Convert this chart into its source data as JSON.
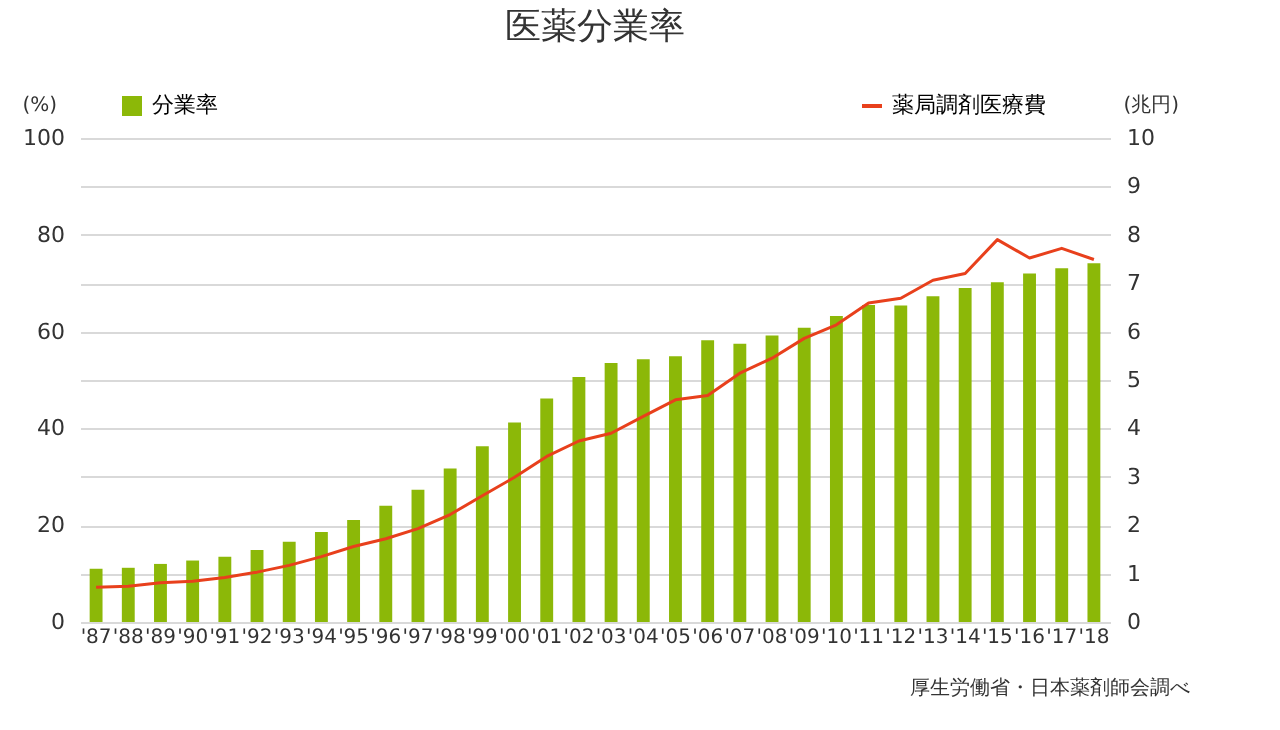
{
  "chart_data": {
    "type": "bar",
    "title": "医薬分業率",
    "ylabel": "(%)",
    "y2label": "(兆円)",
    "categories": [
      "'87",
      "'88",
      "'89",
      "'90",
      "'91",
      "'92",
      "'93",
      "'94",
      "'95",
      "'96",
      "'97",
      "'98",
      "'99",
      "'00",
      "'01",
      "'02",
      "'03",
      "'04",
      "'05",
      "'06",
      "'07",
      "'08",
      "'09",
      "'10",
      "'11",
      "'12",
      "'13",
      "'14",
      "'15",
      "'16",
      "'17",
      "'18"
    ],
    "series": [
      {
        "name": "分業率",
        "color": "#8cb808",
        "values": [
          11.0,
          11.2,
          12.0,
          12.7,
          13.5,
          14.9,
          16.6,
          18.6,
          21.1,
          24.0,
          27.3,
          31.7,
          36.3,
          41.2,
          46.2,
          50.6,
          53.5,
          54.3,
          54.9,
          58.2,
          57.5,
          59.2,
          60.8,
          63.2,
          65.5,
          65.4,
          67.3,
          69.0,
          70.2,
          72.0,
          73.1,
          74.1
        ]
      },
      {
        "name": "薬局調剤医療費",
        "type": "line",
        "axis": "y2",
        "color": "#e8401c",
        "values": [
          0.72,
          0.74,
          0.81,
          0.84,
          0.92,
          1.03,
          1.17,
          1.35,
          1.56,
          1.72,
          1.93,
          2.22,
          2.61,
          2.99,
          3.42,
          3.74,
          3.9,
          4.25,
          4.59,
          4.68,
          5.14,
          5.45,
          5.86,
          6.14,
          6.59,
          6.69,
          7.06,
          7.2,
          7.9,
          7.52,
          7.72,
          7.49
        ]
      }
    ],
    "ylim": [
      0,
      100
    ],
    "yticks": [
      0,
      20,
      40,
      60,
      80,
      100
    ],
    "y2lim": [
      0,
      10
    ],
    "y2ticks": [
      0,
      1,
      2,
      3,
      4,
      5,
      6,
      7,
      8,
      9,
      10
    ],
    "grid": true,
    "legend": "top",
    "line_style": "solid",
    "marker": "none",
    "annotations": [
      "厚生労働省・日本薬剤師会調べ"
    ]
  }
}
